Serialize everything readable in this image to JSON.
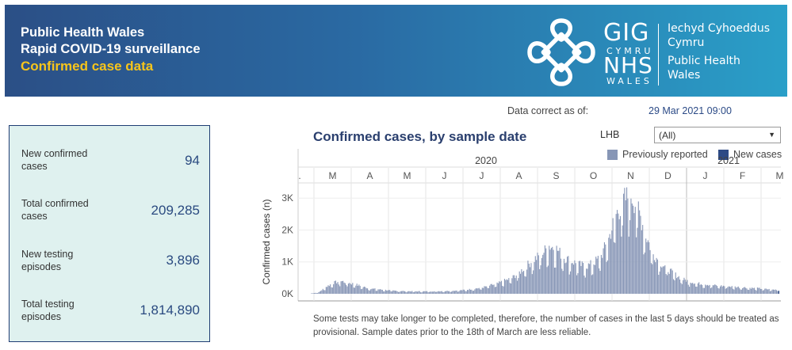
{
  "header": {
    "title_line1": "Public Health Wales",
    "title_line2": "Rapid COVID-19 surveillance",
    "title_line3": "Confirmed case data",
    "logo": {
      "gig": "GIG",
      "cymru": "CYMRU",
      "nhs": "NHS",
      "wales": "WALES",
      "org_welsh_1": "Iechyd Cyhoeddus",
      "org_welsh_2": "Cymru",
      "org_english_1": "Public Health",
      "org_english_2": "Wales"
    }
  },
  "as_of": {
    "label": "Data correct as of:",
    "value": "29 Mar 2021 09:00"
  },
  "kpis": [
    {
      "label": "New confirmed cases",
      "value": "94"
    },
    {
      "label": "Total confirmed cases",
      "value": "209,285"
    },
    {
      "label": "New testing episodes",
      "value": "3,896"
    },
    {
      "label": "Total testing episodes",
      "value": "1,814,890"
    }
  ],
  "filter": {
    "label": "LHB",
    "value": "(All)"
  },
  "legend": {
    "previous": "Previously reported",
    "new": "New cases"
  },
  "colors": {
    "previous": "#8796b6",
    "new": "#2d4a85",
    "kpi_bg": "#dff1ef",
    "accent_yellow": "#f7c51b"
  },
  "chart_data": {
    "type": "bar",
    "title": "Confirmed cases, by sample date",
    "ylabel": "Confirmed cases (n)",
    "ylim": [
      0,
      3700
    ],
    "yticks": [
      "0K",
      "1K",
      "2K",
      "3K"
    ],
    "year_labels": [
      "2020",
      "2021"
    ],
    "month_labels": [
      ".",
      "M",
      "A",
      "M",
      "J",
      "J",
      "A",
      "S",
      "O",
      "N",
      "D",
      "J",
      "F",
      "M"
    ],
    "series": [
      {
        "name": "Previously reported",
        "weekly_average_values": [
          10,
          40,
          200,
          320,
          370,
          320,
          270,
          200,
          150,
          130,
          110,
          90,
          80,
          75,
          70,
          70,
          70,
          75,
          80,
          90,
          100,
          120,
          150,
          180,
          240,
          290,
          380,
          460,
          620,
          820,
          1000,
          1150,
          1400,
          1300,
          1050,
          950,
          850,
          800,
          900,
          1100,
          1600,
          2300,
          2700,
          2900,
          2450,
          1700,
          1150,
          900,
          700,
          550,
          420,
          350,
          300,
          280,
          250,
          230,
          220,
          200,
          190,
          170,
          160,
          140,
          120
        ]
      },
      {
        "name": "New cases",
        "values": [
          94
        ]
      }
    ]
  },
  "footnote": "Some tests may take longer to be completed, therefore, the number of cases in the last 5 days should be treated as provisional. Sample dates prior to the 18th of March are less reliable."
}
